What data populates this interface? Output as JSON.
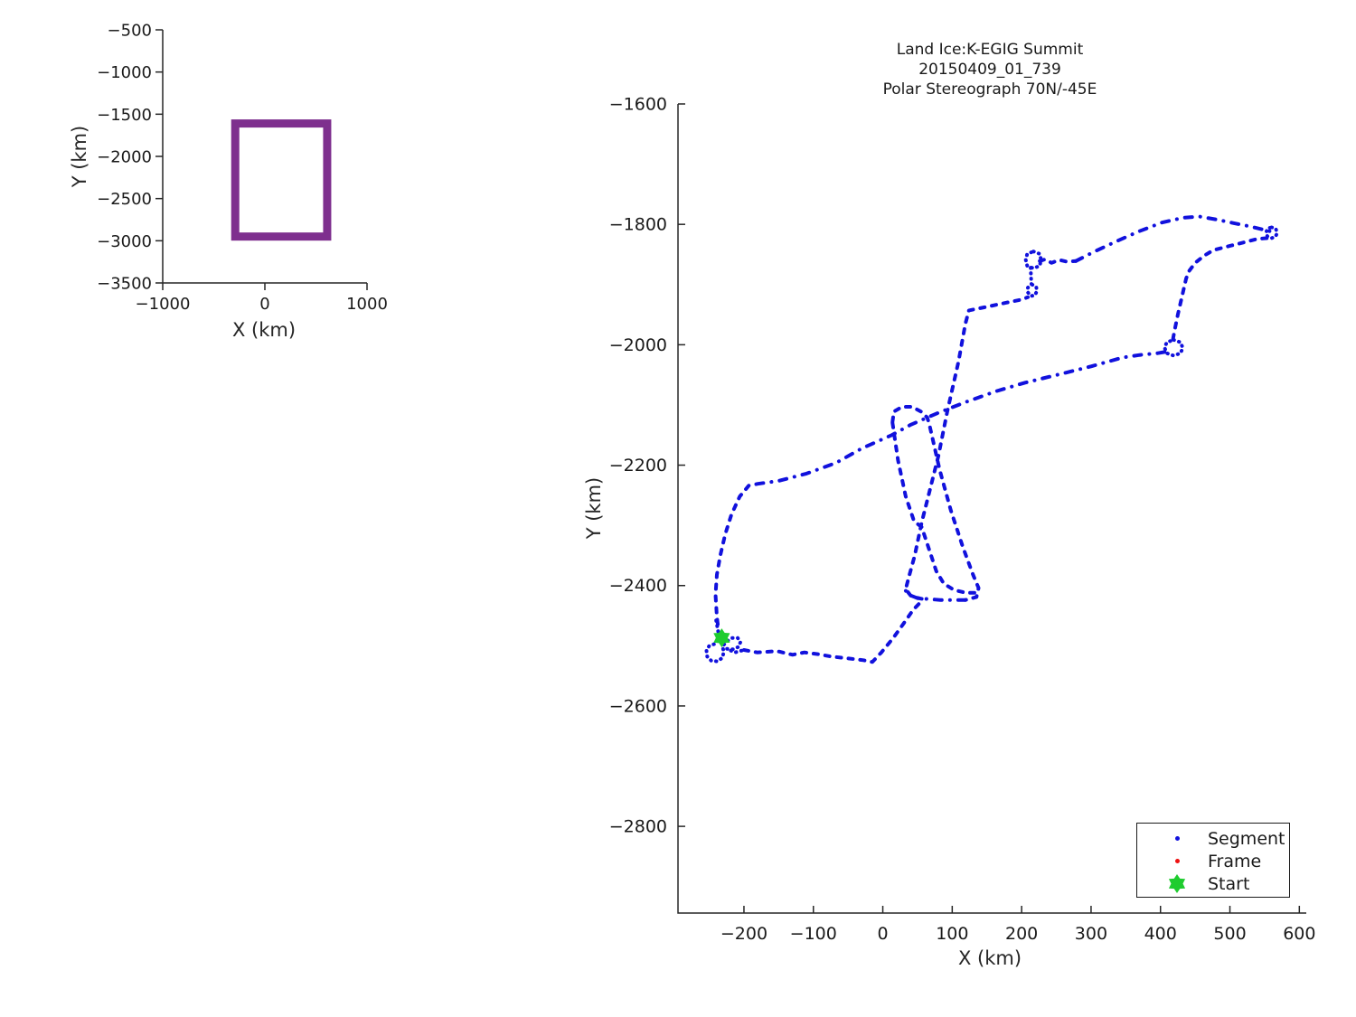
{
  "figure": {
    "background": "#ffffff",
    "text_color": "#262626"
  },
  "chart_data": [
    {
      "name": "overview_map",
      "type": "line",
      "title": "",
      "xlabel": "X (km)",
      "ylabel": "Y (km)",
      "xlim": [
        -1000,
        1000
      ],
      "ylim": [
        -3500,
        -500
      ],
      "xticks": [
        -1000,
        0,
        1000
      ],
      "yticks": [
        -500,
        -1000,
        -1500,
        -2000,
        -2500,
        -3000,
        -3500
      ],
      "grid": false,
      "box_color": "#7E2F8E",
      "box_rect": {
        "x0": -290,
        "x1": 610,
        "y0": -2950,
        "y1": -1610
      }
    },
    {
      "name": "flight_track",
      "type": "line",
      "title_lines": [
        "Land Ice:K-EGIG Summit",
        "20150409_01_739",
        "Polar Stereograph 70N/-45E"
      ],
      "xlabel": "X (km)",
      "ylabel": "Y (km)",
      "xlim": [
        -295,
        610
      ],
      "ylim": [
        -2944,
        -1600
      ],
      "xticks": [
        -200,
        -100,
        0,
        100,
        200,
        300,
        400,
        500,
        600
      ],
      "yticks": [
        -1600,
        -1800,
        -2000,
        -2200,
        -2400,
        -2600,
        -2800
      ],
      "grid": false,
      "track_color": "#1111dd",
      "frame_color": "#ee1111",
      "start_color": "#1fcc2f",
      "start_point": [
        -232,
        -2487
      ],
      "legend": {
        "position": "south-east-inside",
        "items": [
          {
            "label": "Segment",
            "marker": "dot",
            "color": "#1111dd"
          },
          {
            "label": "Frame",
            "marker": "dot",
            "color": "#ee1111"
          },
          {
            "label": "Start",
            "marker": "hexagram",
            "color": "#1fcc2f"
          }
        ]
      },
      "track_segments": [
        {
          "ls": "dense",
          "pts": [
            [
              -240,
              -2458
            ],
            [
              -237,
              -2477
            ],
            [
              -234,
              -2488
            ],
            [
              -242,
              -2497
            ],
            [
              -250,
              -2500
            ],
            [
              -254,
              -2508
            ],
            [
              -253,
              -2518
            ],
            [
              -247,
              -2525
            ],
            [
              -238,
              -2526
            ],
            [
              -231,
              -2520
            ],
            [
              -229,
              -2510
            ],
            [
              -231,
              -2501
            ],
            [
              -225,
              -2493
            ],
            [
              -217,
              -2487
            ],
            [
              -209,
              -2487
            ],
            [
              -205,
              -2494
            ],
            [
              -208,
              -2502
            ],
            [
              -216,
              -2506
            ],
            [
              -225,
              -2505
            ],
            [
              -213,
              -2511
            ],
            [
              -200,
              -2507
            ]
          ]
        },
        {
          "ls": "dash",
          "pts": [
            [
              -200,
              -2507
            ],
            [
              -181,
              -2511
            ],
            [
              -152,
              -2509
            ],
            [
              -130,
              -2515
            ],
            [
              -113,
              -2511
            ],
            [
              -93,
              -2514
            ],
            [
              -74,
              -2518
            ],
            [
              -50,
              -2521
            ],
            [
              -28,
              -2524
            ],
            [
              -15,
              -2527
            ],
            [
              -2,
              -2511
            ],
            [
              15,
              -2487
            ],
            [
              30,
              -2463
            ],
            [
              44,
              -2440
            ],
            [
              54,
              -2428
            ],
            [
              58,
              -2423
            ]
          ]
        },
        {
          "ls": "dash",
          "pts": [
            [
              14,
              -2128
            ],
            [
              16,
              -2111
            ],
            [
              28,
              -2103
            ],
            [
              42,
              -2103
            ],
            [
              55,
              -2111
            ],
            [
              64,
              -2121
            ],
            [
              67,
              -2132
            ],
            [
              82,
              -2208
            ],
            [
              98,
              -2275
            ],
            [
              115,
              -2335
            ],
            [
              130,
              -2382
            ],
            [
              138,
              -2404
            ],
            [
              135,
              -2419
            ],
            [
              119,
              -2424
            ]
          ]
        },
        {
          "ls": "dashdot",
          "pts": [
            [
              119,
              -2424
            ],
            [
              83,
              -2424
            ],
            [
              50,
              -2421
            ],
            [
              35,
              -2414
            ],
            [
              31,
              -2403
            ]
          ]
        },
        {
          "ls": "dash",
          "pts": [
            [
              14,
              -2130
            ],
            [
              22,
              -2192
            ],
            [
              33,
              -2252
            ],
            [
              45,
              -2293
            ],
            [
              56,
              -2303
            ],
            [
              67,
              -2341
            ],
            [
              77,
              -2376
            ],
            [
              88,
              -2397
            ],
            [
              102,
              -2407
            ],
            [
              119,
              -2412
            ],
            [
              132,
              -2412
            ]
          ]
        },
        {
          "ls": "dash",
          "pts": [
            [
              56,
              -2422
            ],
            [
              41,
              -2418
            ],
            [
              33,
              -2406
            ],
            [
              37,
              -2388
            ],
            [
              46,
              -2350
            ],
            [
              56,
              -2295
            ],
            [
              67,
              -2245
            ],
            [
              80,
              -2185
            ],
            [
              93,
              -2110
            ],
            [
              109,
              -2028
            ],
            [
              119,
              -1965
            ],
            [
              124,
              -1943
            ],
            [
              150,
              -1937
            ],
            [
              178,
              -1930
            ],
            [
              200,
              -1925
            ],
            [
              209,
              -1921
            ]
          ]
        },
        {
          "ls": "dense",
          "pts": [
            [
              215,
              -1900
            ],
            [
              221,
              -1904
            ],
            [
              222,
              -1911
            ],
            [
              219,
              -1918
            ],
            [
              213,
              -1919
            ],
            [
              209,
              -1913
            ],
            [
              209,
              -1905
            ],
            [
              215,
              -1900
            ]
          ]
        },
        {
          "ls": "dense",
          "pts": [
            [
              213,
              -1872
            ],
            [
              214,
              -1899
            ]
          ]
        },
        {
          "ls": "dense",
          "pts": [
            [
              217,
              -1845
            ],
            [
              226,
              -1849
            ],
            [
              228,
              -1859
            ],
            [
              226,
              -1869
            ],
            [
              217,
              -1873
            ],
            [
              208,
              -1869
            ],
            [
              206,
              -1859
            ],
            [
              208,
              -1849
            ],
            [
              217,
              -1845
            ]
          ]
        },
        {
          "ls": "dash",
          "pts": [
            [
              226,
              -1861
            ],
            [
              234,
              -1858
            ],
            [
              243,
              -1864
            ],
            [
              254,
              -1859
            ],
            [
              265,
              -1862
            ],
            [
              278,
              -1861
            ]
          ]
        },
        {
          "ls": "dashdot",
          "pts": [
            [
              278,
              -1861
            ],
            [
              305,
              -1845
            ],
            [
              335,
              -1829
            ],
            [
              368,
              -1812
            ],
            [
              402,
              -1797
            ],
            [
              432,
              -1789
            ],
            [
              456,
              -1787
            ],
            [
              481,
              -1792
            ],
            [
              506,
              -1798
            ],
            [
              531,
              -1804
            ],
            [
              549,
              -1809
            ],
            [
              560,
              -1812
            ]
          ]
        },
        {
          "ls": "dense",
          "pts": [
            [
              560,
              -1805
            ],
            [
              566,
              -1807
            ],
            [
              568,
              -1814
            ],
            [
              566,
              -1820
            ],
            [
              560,
              -1823
            ],
            [
              554,
              -1820
            ],
            [
              552,
              -1814
            ],
            [
              554,
              -1807
            ],
            [
              560,
              -1805
            ]
          ]
        },
        {
          "ls": "dash",
          "pts": [
            [
              553,
              -1823
            ],
            [
              540,
              -1824
            ],
            [
              513,
              -1832
            ],
            [
              492,
              -1838
            ],
            [
              476,
              -1843
            ],
            [
              463,
              -1852
            ],
            [
              450,
              -1864
            ],
            [
              441,
              -1878
            ],
            [
              437,
              -1890
            ],
            [
              431,
              -1920
            ],
            [
              425,
              -1950
            ],
            [
              421,
              -1972
            ],
            [
              418,
              -1990
            ]
          ]
        },
        {
          "ls": "dense",
          "pts": [
            [
              419,
              -1992
            ],
            [
              429,
              -1996
            ],
            [
              432,
              -2005
            ],
            [
              429,
              -2014
            ],
            [
              419,
              -2018
            ],
            [
              409,
              -2014
            ],
            [
              406,
              -2005
            ],
            [
              409,
              -1996
            ],
            [
              419,
              -1992
            ]
          ]
        },
        {
          "ls": "dashdot",
          "pts": [
            [
              406,
              -2012
            ],
            [
              396,
              -2014
            ],
            [
              370,
              -2017
            ],
            [
              346,
              -2021
            ],
            [
              300,
              -2036
            ],
            [
              251,
              -2050
            ],
            [
              205,
              -2063
            ],
            [
              164,
              -2077
            ],
            [
              120,
              -2095
            ],
            [
              80,
              -2113
            ],
            [
              40,
              -2133
            ],
            [
              13,
              -2150
            ],
            [
              -30,
              -2172
            ],
            [
              -67,
              -2196
            ],
            [
              -110,
              -2214
            ],
            [
              -150,
              -2226
            ],
            [
              -180,
              -2231
            ],
            [
              -193,
              -2234
            ]
          ]
        },
        {
          "ls": "dash",
          "pts": [
            [
              -193,
              -2234
            ],
            [
              -206,
              -2252
            ],
            [
              -218,
              -2282
            ],
            [
              -227,
              -2315
            ],
            [
              -234,
              -2350
            ],
            [
              -239,
              -2382
            ],
            [
              -241,
              -2415
            ],
            [
              -239,
              -2452
            ],
            [
              -237,
              -2470
            ]
          ]
        }
      ]
    }
  ]
}
